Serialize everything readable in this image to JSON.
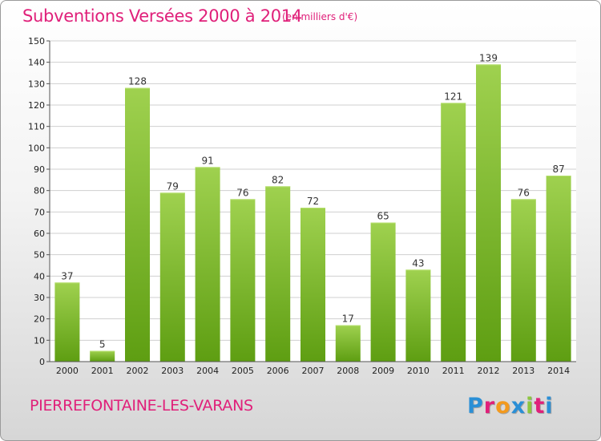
{
  "header": {
    "title": "Subventions Versées 2000 à 2014",
    "subtitle": "(en milliers d'€)"
  },
  "footer": {
    "commune": "PIERREFONTAINE-LES-VARANS",
    "logo_letters": [
      "P",
      "r",
      "o",
      "x",
      "i",
      "t",
      "i"
    ],
    "logo_colors": [
      "#2a8fd6",
      "#e0207a",
      "#f39a1e",
      "#2a8fd6",
      "#8cc63f",
      "#e0207a",
      "#2a8fd6"
    ]
  },
  "colors": {
    "bar_top": "#9fd14f",
    "bar_bottom": "#5e9e12",
    "accent": "#e0207a"
  },
  "chart_data": {
    "type": "bar",
    "title": "Subventions Versées 2000 à 2014",
    "subtitle": "(en milliers d'€)",
    "categories": [
      "2000",
      "2001",
      "2002",
      "2003",
      "2004",
      "2005",
      "2006",
      "2007",
      "2008",
      "2009",
      "2010",
      "2011",
      "2012",
      "2013",
      "2014"
    ],
    "values": [
      37,
      5,
      128,
      79,
      91,
      76,
      82,
      72,
      17,
      65,
      43,
      121,
      139,
      76,
      87
    ],
    "ylim": [
      0,
      150
    ],
    "yticks": [
      0,
      10,
      20,
      30,
      40,
      50,
      60,
      70,
      80,
      90,
      100,
      110,
      120,
      130,
      140,
      150
    ],
    "grid": true,
    "data_labels": true
  }
}
